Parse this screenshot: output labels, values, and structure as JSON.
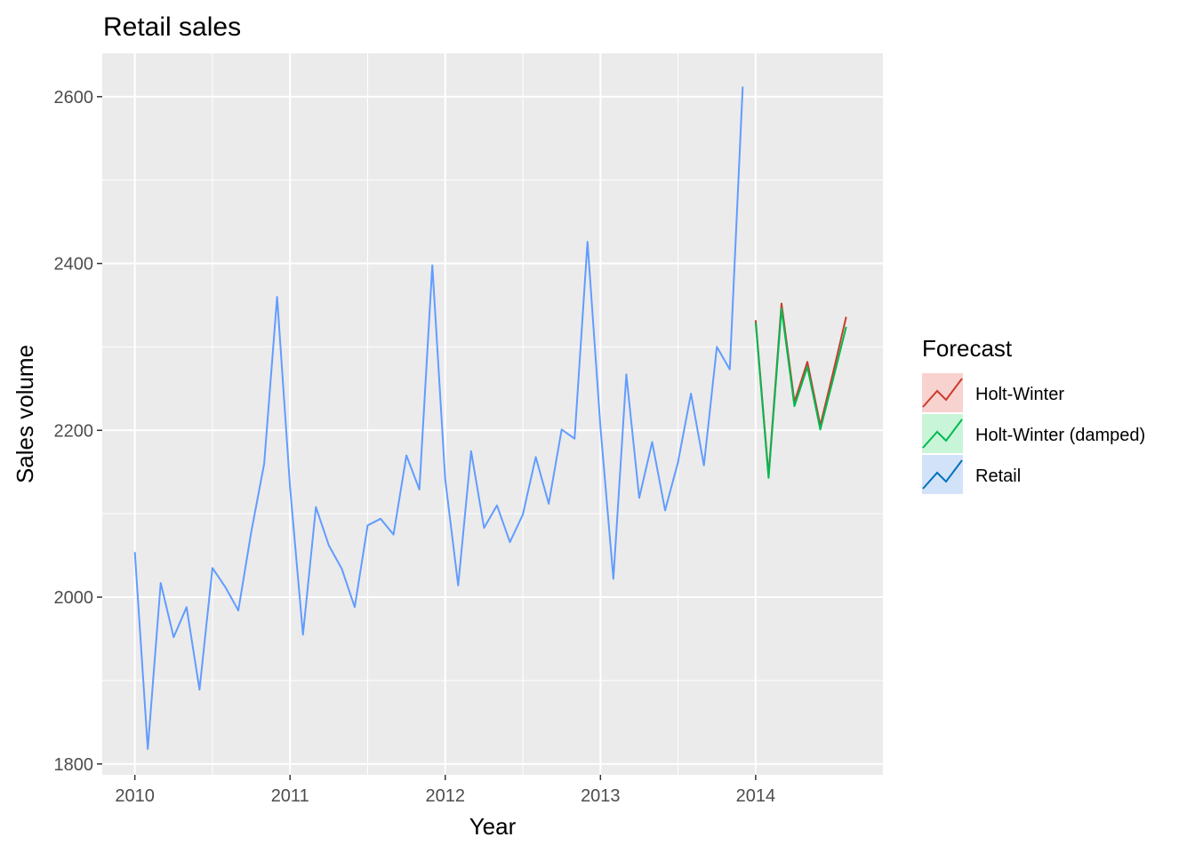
{
  "chart_data": {
    "type": "line",
    "title": "Retail sales",
    "xlabel": "Year",
    "ylabel": "Sales volume",
    "xlim": [
      2009.79,
      2014.82
    ],
    "ylim": [
      1787,
      2652
    ],
    "x_ticks": [
      2010,
      2011,
      2012,
      2013,
      2014
    ],
    "x_tick_labels": [
      "2010",
      "2011",
      "2012",
      "2013",
      "2014"
    ],
    "y_ticks": [
      1800,
      2000,
      2200,
      2400,
      2600
    ],
    "y_tick_labels": [
      "1800",
      "2000",
      "2200",
      "2400",
      "2600"
    ],
    "grid": true,
    "legend": {
      "title": "Forecast",
      "position": "right",
      "items": [
        {
          "label": "Holt-Winter",
          "color": "#c83c2c",
          "fill": "#f8d2cf"
        },
        {
          "label": "Holt-Winter (damped)",
          "color": "#00ba50",
          "fill": "#c8f5d8"
        },
        {
          "label": "Retail",
          "color": "#0072bd",
          "fill": "#d2e2f8"
        }
      ]
    },
    "series": [
      {
        "name": "Retail",
        "color": "#619cff",
        "x_start": 2010,
        "step": 0.08333333,
        "values": [
          2054,
          1818,
          2017,
          1952,
          1988,
          1889,
          2035,
          2012,
          1984,
          2078,
          2160,
          2360,
          2132,
          1955,
          2108,
          2062,
          2034,
          1988,
          2086,
          2094,
          2075,
          2170,
          2129,
          2398,
          2141,
          2014,
          2175,
          2083,
          2110,
          2066,
          2099,
          2168,
          2112,
          2201,
          2190,
          2426,
          2204,
          2022,
          2267,
          2119,
          2186,
          2104,
          2162,
          2244,
          2158,
          2300,
          2273,
          2612
        ]
      },
      {
        "name": "Holt-Winter",
        "color": "#c83c2c",
        "x_start": 2014,
        "step": 0.08333333,
        "values": [
          2332,
          2146,
          2352,
          2234,
          2282,
          2206,
          2270,
          2336
        ]
      },
      {
        "name": "Holt-Winter (damped)",
        "color": "#00ba50",
        "x_start": 2014,
        "step": 0.08333333,
        "values": [
          2329,
          2143,
          2346,
          2229,
          2276,
          2201,
          2262,
          2324
        ]
      }
    ]
  }
}
